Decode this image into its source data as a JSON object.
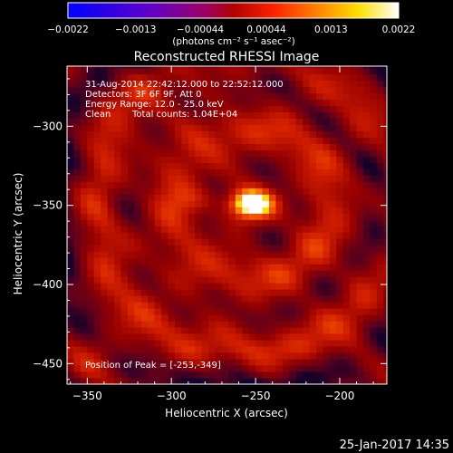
{
  "chart_data": {
    "type": "heatmap",
    "title": "Reconstructed RHESSI Image",
    "xlabel": "Heliocentric X (arcsec)",
    "ylabel": "Heliocentric Y (arcsec)",
    "xlim": [
      -362,
      -172
    ],
    "ylim": [
      -463,
      -262
    ],
    "x_ticks": [
      -350,
      -300,
      -250,
      -200
    ],
    "y_ticks": [
      -300,
      -350,
      -400,
      -450
    ],
    "x_tick_labels": [
      "−350",
      "−300",
      "−250",
      "−200"
    ],
    "y_tick_labels": [
      "−300",
      "−350",
      "−400",
      "−450"
    ],
    "annotations": {
      "time_range": "31-Aug-2014 22:42:12.000 to 22:52:12.000",
      "detectors": "Detectors: 3F 6F 9F, Att 0",
      "energy_range": "Energy Range: 12.0 - 25.0 keV",
      "clean_label": "Clean",
      "total_counts": "Total counts: 1.04E+04",
      "peak_position": "Position of Peak = [-253,-349]"
    },
    "peak": {
      "x": -253,
      "y": -349
    },
    "colorbar": {
      "range": [
        -0.0022,
        0.0022
      ],
      "tick_labels": [
        "−0.0022",
        "−0.0013",
        "−0.00044",
        "0.00044",
        "0.0013",
        "0.0022"
      ],
      "unit_label": "(photons cm⁻² s⁻¹ asec⁻²)"
    }
  },
  "footer": {
    "timestamp": "25-Jan-2017 14:35"
  },
  "colors": {
    "background": "#000000",
    "foreground": "#ffffff",
    "colormap": [
      "#0000ff",
      "#8000c0",
      "#a00060",
      "#b00000",
      "#ff3000",
      "#ff8000",
      "#ffe000",
      "#ffffff"
    ]
  }
}
